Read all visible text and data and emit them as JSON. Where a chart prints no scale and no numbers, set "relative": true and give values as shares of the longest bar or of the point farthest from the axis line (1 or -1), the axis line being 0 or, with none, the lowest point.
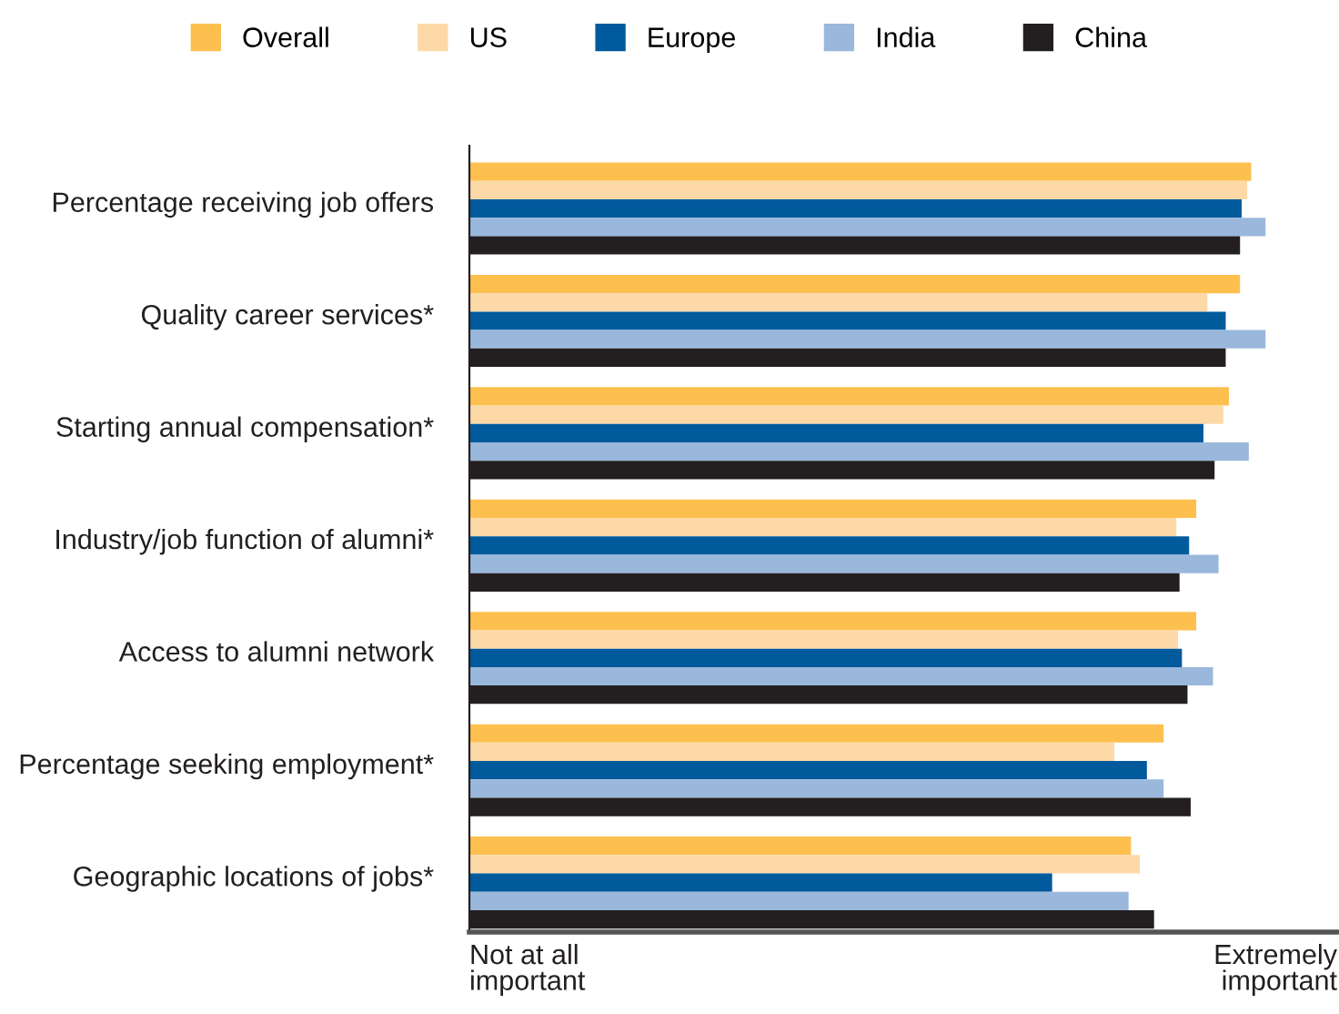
{
  "chart_data": {
    "type": "bar",
    "orientation": "horizontal",
    "relative": true,
    "categories": [
      "Percentage receiving job offers",
      "Quality career services*",
      "Starting annual compensation*",
      "Industry/job function of alumni*",
      "Access to alumni network",
      "Percentage seeking employment*",
      "Geographic locations of jobs*"
    ],
    "series": [
      {
        "name": "Overall",
        "color": "#fdc04f",
        "values": [
          0.982,
          0.968,
          0.954,
          0.913,
          0.913,
          0.872,
          0.831
        ]
      },
      {
        "name": "US",
        "color": "#fdd9a8",
        "values": [
          0.977,
          0.927,
          0.947,
          0.888,
          0.89,
          0.81,
          0.842
        ]
      },
      {
        "name": "Europe",
        "color": "#005a9c",
        "values": [
          0.97,
          0.95,
          0.922,
          0.904,
          0.895,
          0.851,
          0.732
        ]
      },
      {
        "name": "India",
        "color": "#9ab8dc",
        "values": [
          1.0,
          1.0,
          0.979,
          0.941,
          0.934,
          0.872,
          0.828
        ]
      },
      {
        "name": "China",
        "color": "#231f20",
        "values": [
          0.968,
          0.95,
          0.936,
          0.892,
          0.902,
          0.906,
          0.86
        ]
      }
    ],
    "legend": "top",
    "annotations": [
      "Not at all\nimportant",
      "Extremely\nimportant"
    ]
  }
}
